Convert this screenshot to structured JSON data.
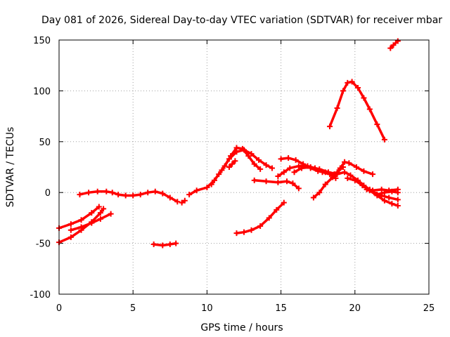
{
  "chart_data": {
    "type": "scatter",
    "title": "Day 081 of 2026, Sidereal Day-to-day VTEC variation (SDTVAR) for receiver mbar",
    "xlabel": "GPS time / hours",
    "ylabel": "SDTVAR / TECUs",
    "xlim": [
      0,
      25
    ],
    "ylim": [
      -100,
      150
    ],
    "xticks": [
      0,
      5,
      10,
      15,
      20,
      25
    ],
    "yticks": [
      -100,
      -50,
      0,
      50,
      100,
      150
    ],
    "grid": true,
    "marker": "plus",
    "color": "#ff0000",
    "series": [
      {
        "name": "trace-01",
        "points": [
          [
            0,
            -35
          ],
          [
            0.8,
            -31
          ],
          [
            1.5,
            -27
          ],
          [
            2.2,
            -20
          ],
          [
            2.7,
            -14
          ]
        ]
      },
      {
        "name": "trace-02",
        "points": [
          [
            0,
            -49
          ],
          [
            0.8,
            -44
          ],
          [
            1.5,
            -37
          ],
          [
            2.2,
            -29
          ],
          [
            2.8,
            -20
          ],
          [
            3.0,
            -16
          ]
        ]
      },
      {
        "name": "trace-03",
        "points": [
          [
            0.8,
            -37
          ],
          [
            1.5,
            -34
          ],
          [
            2.2,
            -30
          ],
          [
            2.8,
            -26
          ],
          [
            3.5,
            -21
          ]
        ]
      },
      {
        "name": "trace-04",
        "points": [
          [
            1.4,
            -2
          ],
          [
            2,
            0
          ],
          [
            2.6,
            1
          ],
          [
            3.2,
            1
          ],
          [
            3.6,
            0
          ],
          [
            4,
            -2
          ],
          [
            4.5,
            -3
          ],
          [
            5,
            -3
          ],
          [
            5.5,
            -2
          ],
          [
            6,
            0
          ],
          [
            6.5,
            1
          ],
          [
            7,
            -1
          ],
          [
            7.5,
            -5
          ],
          [
            8,
            -9
          ]
        ]
      },
      {
        "name": "trace-05",
        "points": [
          [
            6.4,
            -51
          ],
          [
            7,
            -52
          ],
          [
            7.5,
            -51
          ],
          [
            7.9,
            -50
          ]
        ]
      },
      {
        "name": "trace-06",
        "points": [
          [
            8.3,
            -10
          ],
          [
            8.5,
            -8
          ]
        ]
      },
      {
        "name": "trace-07",
        "points": [
          [
            8.8,
            -2
          ],
          [
            9.3,
            2
          ],
          [
            10,
            5
          ],
          [
            10.5,
            12
          ],
          [
            11,
            22
          ],
          [
            11.5,
            33
          ],
          [
            12,
            40
          ],
          [
            12.5,
            42
          ],
          [
            13,
            38
          ],
          [
            13.5,
            32
          ],
          [
            14,
            27
          ],
          [
            14.4,
            24
          ]
        ]
      },
      {
        "name": "trace-08",
        "points": [
          [
            10.3,
            8
          ],
          [
            10.8,
            18
          ],
          [
            11.2,
            26
          ],
          [
            11.6,
            36
          ],
          [
            12,
            44
          ],
          [
            12.4,
            43
          ],
          [
            12.8,
            36
          ],
          [
            13.2,
            28
          ],
          [
            13.6,
            23
          ]
        ]
      },
      {
        "name": "trace-09",
        "points": [
          [
            11.5,
            25
          ],
          [
            11.7,
            28
          ],
          [
            11.9,
            31
          ]
        ]
      },
      {
        "name": "trace-10",
        "points": [
          [
            12,
            -40
          ],
          [
            12.5,
            -39
          ],
          [
            13,
            -37
          ],
          [
            13.6,
            -33
          ],
          [
            14.2,
            -25
          ],
          [
            14.7,
            -17
          ],
          [
            15.2,
            -10
          ]
        ]
      },
      {
        "name": "trace-11",
        "points": [
          [
            13.2,
            12
          ],
          [
            14,
            11
          ],
          [
            14.8,
            10
          ],
          [
            15.4,
            11
          ],
          [
            15.8,
            9
          ],
          [
            16.2,
            4
          ]
        ]
      },
      {
        "name": "trace-12",
        "points": [
          [
            15,
            33
          ],
          [
            15.5,
            34
          ],
          [
            16,
            32
          ],
          [
            16.5,
            28
          ],
          [
            17,
            24
          ],
          [
            17.5,
            21
          ],
          [
            18,
            20
          ],
          [
            18.6,
            18
          ]
        ]
      },
      {
        "name": "trace-13",
        "points": [
          [
            14.8,
            16
          ],
          [
            15.2,
            20
          ],
          [
            15.6,
            24
          ],
          [
            16.2,
            26
          ],
          [
            16.8,
            26
          ],
          [
            17.3,
            24
          ],
          [
            17.8,
            20
          ],
          [
            18.3,
            18
          ],
          [
            18.7,
            14
          ]
        ]
      },
      {
        "name": "trace-14",
        "points": [
          [
            15.9,
            20
          ],
          [
            16.4,
            24
          ],
          [
            17,
            25
          ],
          [
            17.6,
            23
          ],
          [
            18.2,
            20
          ],
          [
            18.8,
            18
          ],
          [
            19.3,
            20
          ],
          [
            19.7,
            17
          ],
          [
            20.2,
            12
          ],
          [
            20.6,
            7
          ],
          [
            21,
            3
          ]
        ]
      },
      {
        "name": "trace-15",
        "points": [
          [
            17.2,
            -5
          ],
          [
            17.6,
            0
          ],
          [
            18,
            8
          ],
          [
            18.5,
            15
          ],
          [
            18.8,
            20
          ],
          [
            19.2,
            25
          ]
        ]
      },
      {
        "name": "trace-16",
        "points": [
          [
            18.3,
            65
          ],
          [
            18.8,
            83
          ],
          [
            19.2,
            100
          ],
          [
            19.5,
            108
          ],
          [
            19.8,
            109
          ],
          [
            20.2,
            103
          ],
          [
            20.6,
            93
          ],
          [
            21,
            82
          ],
          [
            21.5,
            67
          ],
          [
            22,
            52
          ]
        ]
      },
      {
        "name": "trace-17",
        "points": [
          [
            18.6,
            16
          ],
          [
            19,
            24
          ],
          [
            19.3,
            30
          ],
          [
            19.6,
            29
          ],
          [
            20.1,
            25
          ],
          [
            20.6,
            21
          ],
          [
            21.2,
            18
          ]
        ]
      },
      {
        "name": "trace-18",
        "points": [
          [
            19.5,
            14
          ],
          [
            20,
            12
          ],
          [
            20.5,
            7
          ],
          [
            21,
            2
          ],
          [
            21.5,
            -3
          ],
          [
            22,
            -8
          ],
          [
            22.5,
            -11
          ],
          [
            22.9,
            -13
          ]
        ]
      },
      {
        "name": "trace-19",
        "points": [
          [
            20.8,
            3
          ],
          [
            21.3,
            0
          ],
          [
            21.8,
            -3
          ],
          [
            22.3,
            -5
          ],
          [
            22.9,
            -7
          ]
        ]
      },
      {
        "name": "trace-20",
        "points": [
          [
            21.2,
            2
          ],
          [
            21.8,
            3
          ],
          [
            22.3,
            2
          ],
          [
            22.9,
            3
          ]
        ]
      },
      {
        "name": "trace-21",
        "points": [
          [
            21.5,
            -2
          ],
          [
            22,
            0
          ],
          [
            22.5,
            1
          ],
          [
            22.9,
            0
          ]
        ]
      },
      {
        "name": "trace-22",
        "points": [
          [
            22.4,
            142
          ],
          [
            22.6,
            145
          ],
          [
            22.9,
            149
          ]
        ]
      }
    ]
  }
}
